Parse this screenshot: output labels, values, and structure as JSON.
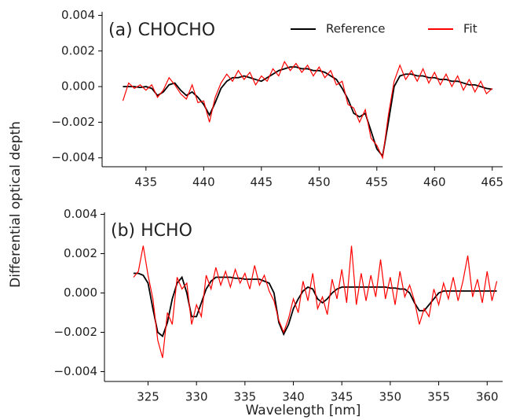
{
  "chart_data": [
    {
      "type": "line",
      "title": "(a) CHOCHO",
      "ylabel": "Differential optical depth",
      "legend": "upper right",
      "x": [
        433,
        433.5,
        434,
        434.5,
        435,
        435.5,
        436,
        436.5,
        437,
        437.5,
        438,
        438.5,
        439,
        439.5,
        440,
        440.5,
        441,
        441.5,
        442,
        442.5,
        443,
        443.5,
        444,
        444.5,
        445,
        445.5,
        446,
        446.5,
        447,
        447.5,
        448,
        448.5,
        449,
        449.5,
        450,
        450.5,
        451,
        451.5,
        452,
        452.5,
        453,
        453.5,
        454,
        454.5,
        455,
        455.5,
        456,
        456.5,
        457,
        457.5,
        458,
        458.5,
        459,
        459.5,
        460,
        460.5,
        461,
        461.5,
        462,
        462.5,
        463,
        463.5,
        464,
        464.5,
        465
      ],
      "series": [
        {
          "name": "Reference",
          "color": "#000000",
          "values": [
            0,
            0,
            0,
            -5e-05,
            0,
            -0.0001,
            -0.0005,
            -0.0003,
            0.0001,
            0.0002,
            -0.0002,
            -0.0005,
            -0.0003,
            -0.0006,
            -0.001,
            -0.0016,
            -0.0009,
            -0.0001,
            0.0003,
            0.0005,
            0.0005,
            0.0006,
            0.0005,
            0.0004,
            0.0003,
            0.0005,
            0.0007,
            0.0009,
            0.001,
            0.0011,
            0.0011,
            0.001,
            0.001,
            0.0009,
            0.0009,
            0.0008,
            0.0006,
            0.0004,
            -0.0001,
            -0.0007,
            -0.0015,
            -0.0017,
            -0.0015,
            -0.0025,
            -0.0035,
            -0.0039,
            -0.002,
            0,
            0.0006,
            0.0007,
            0.0007,
            0.0006,
            0.0006,
            0.0005,
            0.0005,
            0.0004,
            0.0004,
            0.0003,
            0.0003,
            0.0002,
            0.0001,
            0.0001,
            0,
            -0.0001,
            -0.00015
          ]
        },
        {
          "name": "Fit",
          "color": "#ff0000",
          "values": [
            -0.0008,
            0.0002,
            -0.0001,
            0.0001,
            -0.0002,
            0.0001,
            -0.0006,
            -0.0002,
            0.0005,
            0.0001,
            -0.0004,
            -0.0007,
            0.0001,
            -0.0009,
            -0.0008,
            -0.002,
            -0.0006,
            0.0002,
            0.0007,
            0.0003,
            0.0009,
            0.0004,
            0.0008,
            0.0001,
            0.0006,
            0.0003,
            0.001,
            0.0006,
            0.0014,
            0.0009,
            0.0013,
            0.0008,
            0.0012,
            0.0006,
            0.0011,
            0.0005,
            0.0009,
            0.0001,
            0.0003,
            -0.001,
            -0.0012,
            -0.002,
            -0.0013,
            -0.0029,
            -0.0033,
            -0.004,
            -0.0016,
            0.0003,
            0.0012,
            0.0004,
            0.0009,
            0.0003,
            0.001,
            0.0002,
            0.0008,
            0.0001,
            0.0007,
            0,
            0.0006,
            -0.0002,
            0.0004,
            -0.0003,
            0.0003,
            -0.0004,
            -0.0001
          ]
        }
      ],
      "xlim": [
        431.2,
        465.9
      ],
      "ylim": [
        -0.0045,
        0.0042
      ],
      "xticks": [
        435,
        440,
        445,
        450,
        455,
        460,
        465
      ],
      "yticks": [
        {
          "value": -0.004,
          "label": "−0.004"
        },
        {
          "value": -0.002,
          "label": "−0.002"
        },
        {
          "value": 0,
          "label": "0.000"
        },
        0.002,
        0.004
      ]
    },
    {
      "type": "line",
      "title": "(b) HCHO",
      "xlabel": "Wavelength [nm]",
      "x": [
        323.5,
        324,
        324.5,
        325,
        325.5,
        326,
        326.5,
        327,
        327.5,
        328,
        328.5,
        329,
        329.5,
        330,
        330.5,
        331,
        331.5,
        332,
        332.5,
        333,
        333.5,
        334,
        334.5,
        335,
        335.5,
        336,
        336.5,
        337,
        337.5,
        338,
        338.5,
        339,
        339.5,
        340,
        340.5,
        341,
        341.5,
        342,
        342.5,
        343,
        343.5,
        344,
        344.5,
        345,
        345.5,
        346,
        346.5,
        347,
        347.5,
        348,
        348.5,
        349,
        349.5,
        350,
        350.5,
        351,
        351.5,
        352,
        352.5,
        353,
        353.5,
        354,
        354.5,
        355,
        355.5,
        356,
        356.5,
        357,
        357.5,
        358,
        358.5,
        359,
        359.5,
        360,
        360.5,
        361
      ],
      "series": [
        {
          "color": "#000000",
          "values": [
            0.001,
            0.001,
            0.0009,
            0.0005,
            -0.0008,
            -0.002,
            -0.0022,
            -0.0015,
            -0.0003,
            0.0005,
            0.0008,
            0,
            -0.0012,
            -0.0012,
            -0.0005,
            0.0002,
            0.0006,
            0.0008,
            0.0008,
            0.0008,
            0.0008,
            0.00075,
            0.00075,
            0.0007,
            0.0007,
            0.0007,
            0.0007,
            0.0006,
            0.0005,
            0,
            -0.0015,
            -0.0021,
            -0.0016,
            -0.0008,
            -0.0003,
            0.0001,
            0.0003,
            0.0002,
            -0.0003,
            -0.0005,
            -0.0003,
            0,
            0.0002,
            0.0003,
            0.0003,
            0.0003,
            0.0003,
            0.0003,
            0.0003,
            0.0003,
            0.0003,
            0.0003,
            0.0003,
            0.00025,
            0.00025,
            0.0002,
            0.0002,
            0,
            -0.0005,
            -0.0009,
            -0.0009,
            -0.0006,
            -0.0003,
            0,
            0.0001,
            0.0001,
            0.0001,
            0.0001,
            0.0001,
            0.0001,
            0.0001,
            0.0001,
            0.0001,
            0.0001,
            0.0001,
            0.0001
          ]
        },
        {
          "color": "#ff0000",
          "values": [
            0.0008,
            0.0011,
            0.0024,
            0.0009,
            -0.0003,
            -0.0024,
            -0.0033,
            -0.001,
            -0.0016,
            0.0008,
            0.0002,
            0.0005,
            -0.0016,
            -0.0006,
            -0.0012,
            0.0009,
            0.0002,
            0.0013,
            0.0004,
            0.0011,
            0.0003,
            0.0012,
            0.0005,
            0.001,
            0.0002,
            0.0014,
            0.0004,
            0.0009,
            0.0001,
            -0.0004,
            -0.0014,
            -0.002,
            -0.0013,
            -0.0003,
            -0.001,
            0.0006,
            -0.0004,
            0.001,
            -0.0008,
            -0.0002,
            -0.0011,
            0.0007,
            -0.0003,
            0.0012,
            -0.0005,
            0.0024,
            -0.0006,
            0.001,
            -0.0004,
            0.0009,
            -0.0002,
            0.0017,
            -0.0003,
            0.0008,
            -0.0006,
            0.0011,
            -0.0002,
            0.0004,
            -0.0004,
            -0.0016,
            -0.0008,
            -0.0012,
            0.0002,
            -0.0006,
            0.0005,
            -0.0003,
            0.0008,
            -0.0004,
            0.0006,
            0.0019,
            -0.0002,
            0.0007,
            -0.0005,
            0.0011,
            -0.0004,
            0.0006
          ]
        }
      ],
      "xlim": [
        320.5,
        361.6
      ],
      "ylim": [
        -0.0045,
        0.0041
      ],
      "xticks": [
        325,
        330,
        335,
        340,
        345,
        350,
        355,
        360
      ],
      "yticks": [
        {
          "value": -0.004,
          "label": "−0.004"
        },
        {
          "value": -0.002,
          "label": "−0.002"
        },
        {
          "value": 0,
          "label": "0.000"
        },
        0.002,
        0.004
      ]
    }
  ]
}
